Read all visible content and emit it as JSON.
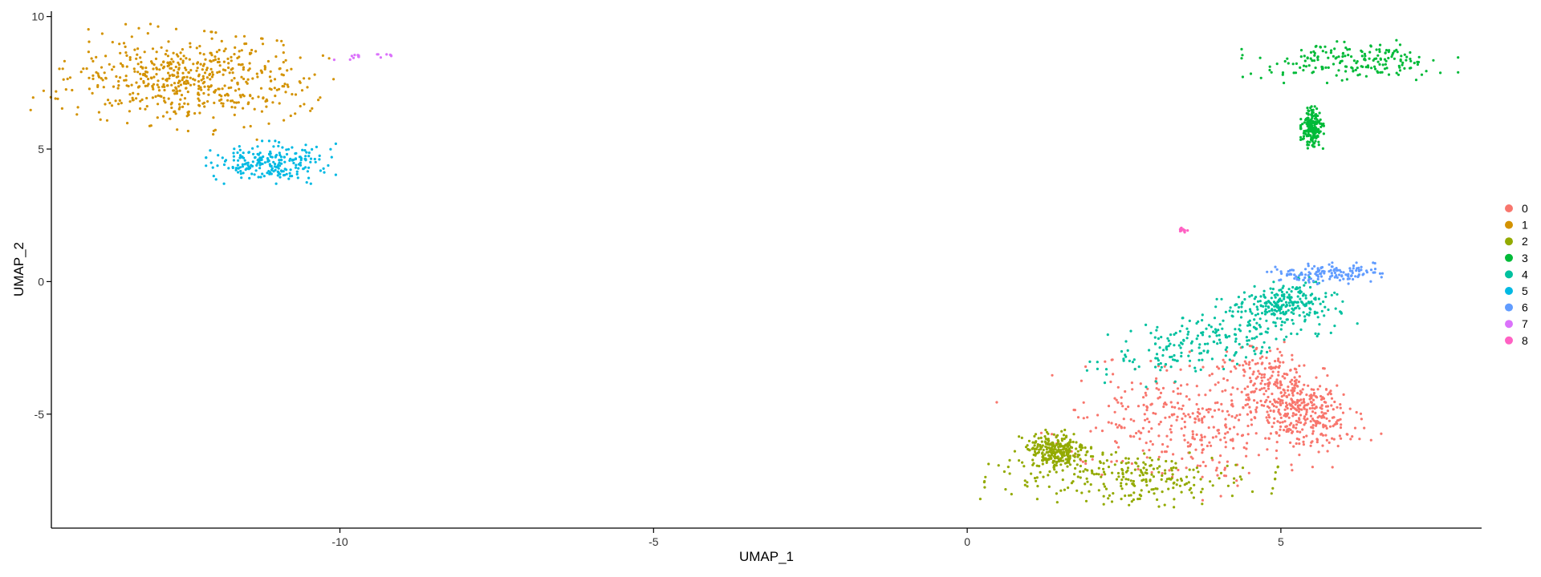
{
  "chart_data": {
    "type": "scatter",
    "title": "",
    "xlabel": "UMAP_1",
    "ylabel": "UMAP_2",
    "xlim": [
      -14.6,
      8.2
    ],
    "ylim": [
      -9.3,
      10.2
    ],
    "x_ticks": [
      -10,
      -5,
      0,
      5
    ],
    "y_ticks": [
      -5,
      0,
      5,
      10
    ],
    "grid": false,
    "legend_position": "right",
    "series": [
      {
        "name": "0",
        "color": "#F8766D",
        "point_count": 820,
        "clusters": [
          {
            "cx": 3.7,
            "cy": -5.2,
            "sx": 1.05,
            "sy": 1.15,
            "rot": 0.55
          },
          {
            "cx": 5.2,
            "cy": -4.4,
            "sx": 0.35,
            "sy": 0.9,
            "rot": 0.3
          }
        ]
      },
      {
        "name": "1",
        "color": "#D39200",
        "point_count": 560,
        "clusters": [
          {
            "cx": -12.4,
            "cy": 7.6,
            "sx": 0.95,
            "sy": 0.8,
            "rot": -0.3
          }
        ]
      },
      {
        "name": "2",
        "color": "#93AA00",
        "point_count": 520,
        "clusters": [
          {
            "cx": 2.6,
            "cy": -7.4,
            "sx": 1.0,
            "sy": 0.45,
            "rot": -0.1
          },
          {
            "cx": 1.4,
            "cy": -6.4,
            "sx": 0.25,
            "sy": 0.35,
            "rot": 0
          }
        ]
      },
      {
        "name": "3",
        "color": "#00BA38",
        "point_count": 380,
        "clusters": [
          {
            "cx": 6.1,
            "cy": 8.3,
            "sx": 0.75,
            "sy": 0.35,
            "rot": 0
          },
          {
            "cx": 5.5,
            "cy": 5.8,
            "sx": 0.08,
            "sy": 0.35,
            "rot": 0
          }
        ]
      },
      {
        "name": "4",
        "color": "#00C19F",
        "point_count": 460,
        "clusters": [
          {
            "cx": 3.9,
            "cy": -2.2,
            "sx": 1.0,
            "sy": 0.45,
            "rot": 0.55
          },
          {
            "cx": 5.0,
            "cy": -0.8,
            "sx": 0.4,
            "sy": 0.35,
            "rot": 0.6
          }
        ]
      },
      {
        "name": "5",
        "color": "#00B9E3",
        "point_count": 230,
        "clusters": [
          {
            "cx": -11.1,
            "cy": 4.5,
            "sx": 0.45,
            "sy": 0.35,
            "rot": 0
          }
        ]
      },
      {
        "name": "6",
        "color": "#619CFF",
        "point_count": 140,
        "clusters": [
          {
            "cx": 5.7,
            "cy": 0.3,
            "sx": 0.4,
            "sy": 0.18,
            "rot": 0
          }
        ]
      },
      {
        "name": "7",
        "color": "#DB72FB",
        "point_count": 16,
        "clusters": [
          {
            "cx": -9.6,
            "cy": 8.5,
            "sx": 0.3,
            "sy": 0.05,
            "rot": 0.15
          }
        ]
      },
      {
        "name": "8",
        "color": "#FF61C3",
        "point_count": 12,
        "clusters": [
          {
            "cx": 3.45,
            "cy": 1.95,
            "sx": 0.05,
            "sy": 0.04,
            "rot": 0
          }
        ]
      }
    ]
  }
}
